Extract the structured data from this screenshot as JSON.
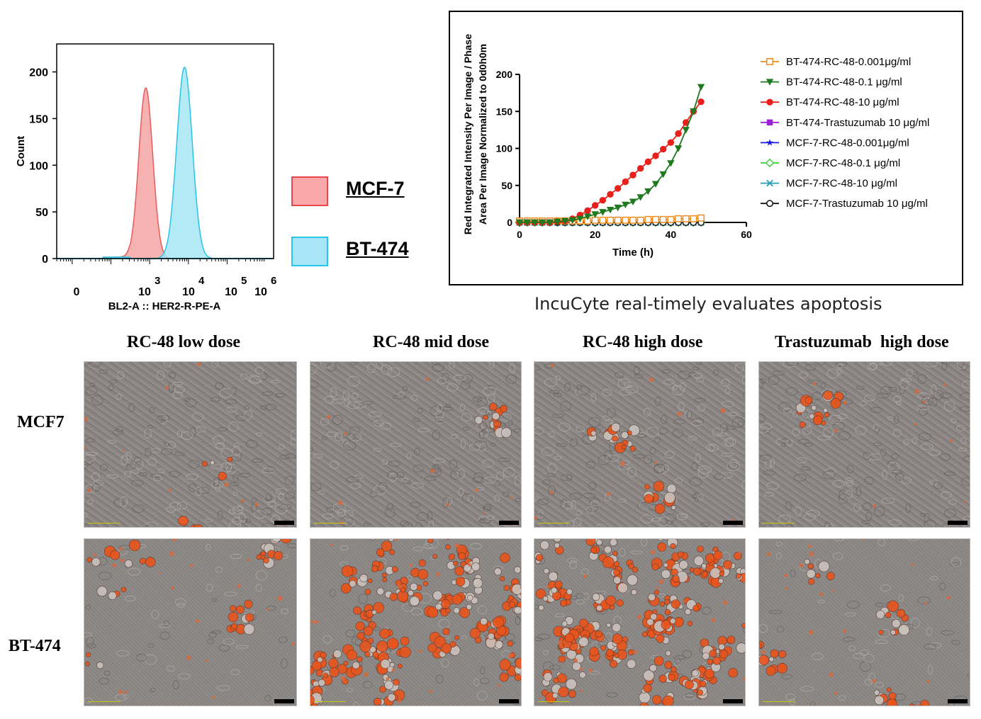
{
  "histogram": {
    "chart_data": {
      "type": "area",
      "xlabel": "BL2-A :: HER2-R-PE-A",
      "ylabel": "Count",
      "yticks": [
        "0",
        "50",
        "100",
        "150",
        "200"
      ],
      "xticks": [
        "0",
        "10",
        "10",
        "10",
        "10"
      ],
      "xtick_exponents": [
        "",
        "3",
        "4",
        "5",
        "6"
      ],
      "xscale": "log",
      "ylim": [
        0,
        230
      ],
      "series": [
        {
          "name": "MCF-7",
          "color": "#f4a3a3",
          "stroke": "#e85c5c",
          "peak_log10x": 2.9,
          "peak_count": 183,
          "width": 0.18
        },
        {
          "name": "BT-474",
          "color": "#a6e6f4",
          "stroke": "#27c5e8",
          "peak_log10x": 3.9,
          "peak_count": 205,
          "width": 0.2
        }
      ]
    },
    "legend": [
      {
        "label": "MCF-7",
        "fill": "#f9a9a9",
        "border": "#e8474c"
      },
      {
        "label": "BT-474",
        "fill": "#a6e6f7",
        "border": "#2bc4ea"
      }
    ]
  },
  "incucyte": {
    "chart_data": {
      "type": "line",
      "xlabel": "Time (h)",
      "ylabel_line1": "Red  Integrated Intensity Per Image / Phase",
      "ylabel_line2": "Area Per Image Normalized to 0d0h0m",
      "xlim": [
        0,
        60
      ],
      "ylim": [
        0,
        200
      ],
      "xticks": [
        "0",
        "20",
        "40",
        "60"
      ],
      "yticks": [
        "0",
        "50",
        "100",
        "150",
        "200"
      ],
      "x": [
        0,
        2,
        4,
        6,
        8,
        10,
        12,
        14,
        16,
        18,
        20,
        22,
        24,
        26,
        28,
        30,
        32,
        34,
        36,
        38,
        40,
        42,
        44,
        46,
        48
      ],
      "series": [
        {
          "name": "BT-474-RC-48-0.001μg/ml",
          "color": "#f08c1e",
          "marker": "square-open",
          "values": [
            2,
            2,
            2,
            2,
            2,
            2,
            2,
            2,
            2,
            2,
            3,
            3,
            3,
            3,
            3,
            3,
            3,
            4,
            4,
            4,
            4,
            5,
            5,
            5,
            6
          ]
        },
        {
          "name": "BT-474-RC-48-0.1 μg/ml",
          "color": "#1f7a1f",
          "marker": "triangle-down",
          "values": [
            0,
            0,
            0,
            0,
            0,
            1,
            2,
            3,
            5,
            8,
            11,
            14,
            17,
            20,
            24,
            28,
            34,
            42,
            52,
            65,
            80,
            100,
            125,
            150,
            183
          ]
        },
        {
          "name": "BT-474-RC-48-10 μg/ml",
          "color": "#e8201c",
          "marker": "circle",
          "values": [
            0,
            0,
            0,
            0,
            0,
            1,
            2,
            5,
            10,
            16,
            23,
            30,
            38,
            46,
            55,
            64,
            73,
            82,
            90,
            99,
            108,
            120,
            135,
            150,
            163
          ]
        },
        {
          "name": "BT-474-Trastuzumab 10 μg/ml",
          "color": "#9a1fd6",
          "marker": "square",
          "values": [
            0,
            0,
            0,
            0,
            0,
            0,
            0,
            0,
            0,
            0,
            0,
            0,
            0,
            0,
            0,
            0,
            0,
            0,
            0,
            0,
            0,
            0,
            0,
            0,
            0
          ]
        },
        {
          "name": "MCF-7-RC-48-0.001μg/ml",
          "color": "#1a1ae0",
          "marker": "star",
          "values": [
            0,
            0,
            0,
            0,
            0,
            0,
            0,
            0,
            0,
            0,
            0,
            0,
            0,
            0,
            0,
            0,
            0,
            0,
            0,
            0,
            0,
            0,
            0,
            0,
            0
          ]
        },
        {
          "name": "MCF-7-RC-48-0.1 μg/ml",
          "color": "#3ecf3e",
          "marker": "diamond-open",
          "values": [
            0,
            0,
            0,
            0,
            0,
            0,
            0,
            0,
            0,
            0,
            0,
            0,
            0,
            0,
            0,
            0,
            0,
            0,
            0,
            0,
            0,
            0,
            0,
            0,
            0
          ]
        },
        {
          "name": "MCF-7-RC-48-10 μg/ml",
          "color": "#2a9fb5",
          "marker": "x",
          "values": [
            0,
            0,
            0,
            0,
            0,
            0,
            0,
            0,
            0,
            0,
            0,
            0,
            0,
            0,
            0,
            0,
            0,
            0,
            0,
            0,
            0,
            0,
            0,
            0,
            0
          ]
        },
        {
          "name": "MCF-7-Trastuzumab 10 μg/ml",
          "color": "#111111",
          "marker": "circle-open",
          "values": [
            0,
            0,
            0,
            0,
            0,
            0,
            0,
            0,
            0,
            0,
            0,
            0,
            0,
            0,
            0,
            0,
            0,
            0,
            0,
            0,
            0,
            0,
            0,
            0,
            0
          ]
        }
      ]
    },
    "caption": "IncuCyte real-timely evaluates apoptosis"
  },
  "grid": {
    "columns": [
      "RC-48 low dose",
      "RC-48 mid dose",
      "RC-48 high dose",
      "Trastuzumab  high dose"
    ],
    "rows": [
      "MCF7",
      "BT-474"
    ],
    "red_level": [
      [
        0.05,
        0.03,
        0.08,
        0.04
      ],
      [
        0.15,
        0.75,
        0.85,
        0.12
      ]
    ]
  }
}
